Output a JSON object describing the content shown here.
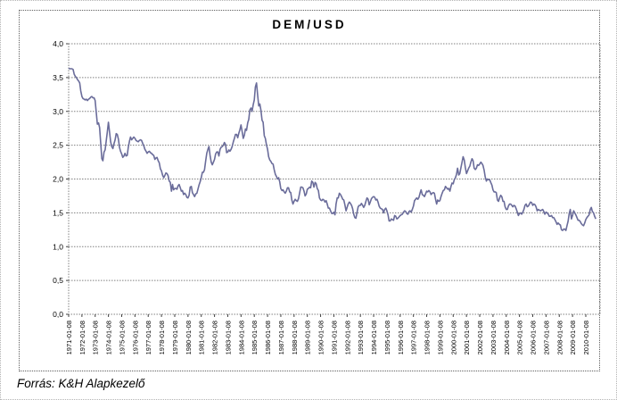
{
  "source_note": "Forrás: K&H Alapkezelő",
  "chart_data": {
    "type": "line",
    "title": "DEM/USD",
    "legend": "none",
    "grid": "horizontal dotted gridlines at every 0.5",
    "line_color": "#6a6c9a",
    "grid_color": "#808080",
    "axis_color": "#404040",
    "background_color": "#ffffff",
    "ylim": [
      0,
      4
    ],
    "y_step": 0.5,
    "y_tick_labels": [
      "0,0",
      "0,5",
      "1,0",
      "1,5",
      "2,0",
      "2,5",
      "3,0",
      "3,5",
      "4,0"
    ],
    "x_tick_labels": [
      "1971-01-08",
      "1972-01-08",
      "1973-01-08",
      "1974-01-08",
      "1975-01-08",
      "1976-01-08",
      "1977-01-08",
      "1978-01-08",
      "1979-01-08",
      "1980-01-08",
      "1981-01-08",
      "1982-01-08",
      "1983-01-08",
      "1984-01-08",
      "1985-01-08",
      "1986-01-08",
      "1987-01-08",
      "1988-01-08",
      "1989-01-08",
      "1990-01-08",
      "1991-01-08",
      "1992-01-08",
      "1993-01-08",
      "1994-01-08",
      "1995-01-08",
      "1996-01-08",
      "1997-01-08",
      "1998-01-08",
      "1999-01-08",
      "2000-01-08",
      "2001-01-08",
      "2002-01-08",
      "2003-01-08",
      "2004-01-08",
      "2005-01-08",
      "2006-01-08",
      "2007-01-08",
      "2008-01-08",
      "2009-01-08",
      "2010-01-08"
    ],
    "series": [
      {
        "name": "DEM/USD",
        "start": "1971-01",
        "frequency": "monthly",
        "values": [
          3.64,
          3.63,
          3.63,
          3.63,
          3.62,
          3.55,
          3.52,
          3.5,
          3.47,
          3.45,
          3.42,
          3.3,
          3.22,
          3.19,
          3.18,
          3.17,
          3.18,
          3.16,
          3.18,
          3.19,
          3.21,
          3.22,
          3.2,
          3.2,
          3.16,
          2.98,
          2.81,
          2.83,
          2.76,
          2.54,
          2.3,
          2.27,
          2.4,
          2.43,
          2.56,
          2.7,
          2.84,
          2.69,
          2.55,
          2.48,
          2.45,
          2.52,
          2.58,
          2.67,
          2.66,
          2.59,
          2.47,
          2.41,
          2.37,
          2.32,
          2.34,
          2.38,
          2.34,
          2.35,
          2.47,
          2.56,
          2.62,
          2.58,
          2.6,
          2.62,
          2.6,
          2.57,
          2.56,
          2.55,
          2.57,
          2.58,
          2.57,
          2.53,
          2.49,
          2.44,
          2.41,
          2.38,
          2.4,
          2.41,
          2.39,
          2.38,
          2.36,
          2.35,
          2.29,
          2.31,
          2.32,
          2.27,
          2.24,
          2.15,
          2.12,
          2.06,
          2.02,
          2.05,
          2.09,
          2.08,
          2.05,
          1.97,
          1.95,
          1.82,
          1.92,
          1.84,
          1.86,
          1.86,
          1.85,
          1.9,
          1.92,
          1.87,
          1.82,
          1.83,
          1.77,
          1.79,
          1.77,
          1.73,
          1.72,
          1.76,
          1.88,
          1.89,
          1.8,
          1.77,
          1.74,
          1.78,
          1.79,
          1.85,
          1.91,
          1.96,
          2.02,
          2.1,
          2.1,
          2.14,
          2.27,
          2.38,
          2.44,
          2.48,
          2.35,
          2.25,
          2.21,
          2.25,
          2.29,
          2.37,
          2.4,
          2.4,
          2.34,
          2.44,
          2.47,
          2.48,
          2.5,
          2.54,
          2.51,
          2.39,
          2.4,
          2.43,
          2.41,
          2.44,
          2.48,
          2.55,
          2.6,
          2.66,
          2.66,
          2.61,
          2.68,
          2.73,
          2.8,
          2.7,
          2.6,
          2.65,
          2.74,
          2.72,
          2.83,
          2.88,
          3.02,
          3.05,
          3.0,
          3.1,
          3.17,
          3.36,
          3.42,
          3.25,
          3.08,
          3.11,
          3.02,
          2.87,
          2.84,
          2.64,
          2.6,
          2.51,
          2.44,
          2.33,
          2.28,
          2.26,
          2.23,
          2.22,
          2.14,
          2.07,
          2.04,
          2.0,
          2.02,
          1.96,
          1.86,
          1.83,
          1.84,
          1.81,
          1.79,
          1.82,
          1.87,
          1.87,
          1.81,
          1.8,
          1.69,
          1.63,
          1.67,
          1.7,
          1.68,
          1.67,
          1.71,
          1.79,
          1.88,
          1.88,
          1.87,
          1.82,
          1.75,
          1.78,
          1.85,
          1.86,
          1.88,
          1.87,
          1.97,
          1.95,
          1.88,
          1.95,
          1.93,
          1.86,
          1.83,
          1.72,
          1.69,
          1.68,
          1.7,
          1.69,
          1.66,
          1.68,
          1.63,
          1.57,
          1.57,
          1.53,
          1.49,
          1.49,
          1.51,
          1.47,
          1.63,
          1.72,
          1.72,
          1.79,
          1.77,
          1.74,
          1.7,
          1.69,
          1.62,
          1.53,
          1.58,
          1.63,
          1.66,
          1.64,
          1.61,
          1.56,
          1.48,
          1.43,
          1.42,
          1.51,
          1.59,
          1.61,
          1.61,
          1.64,
          1.61,
          1.58,
          1.61,
          1.67,
          1.72,
          1.7,
          1.62,
          1.66,
          1.71,
          1.73,
          1.74,
          1.73,
          1.69,
          1.7,
          1.66,
          1.6,
          1.57,
          1.56,
          1.55,
          1.5,
          1.55,
          1.57,
          1.53,
          1.47,
          1.38,
          1.38,
          1.41,
          1.4,
          1.39,
          1.46,
          1.45,
          1.41,
          1.42,
          1.44,
          1.46,
          1.47,
          1.48,
          1.51,
          1.53,
          1.52,
          1.49,
          1.48,
          1.52,
          1.53,
          1.51,
          1.55,
          1.6,
          1.68,
          1.7,
          1.72,
          1.7,
          1.73,
          1.79,
          1.84,
          1.77,
          1.76,
          1.74,
          1.78,
          1.82,
          1.81,
          1.83,
          1.81,
          1.77,
          1.79,
          1.8,
          1.79,
          1.7,
          1.63,
          1.69,
          1.67,
          1.68,
          1.74,
          1.79,
          1.83,
          1.84,
          1.89,
          1.87,
          1.85,
          1.86,
          1.82,
          1.89,
          1.94,
          1.93,
          1.99,
          2.02,
          2.07,
          2.16,
          2.06,
          2.08,
          2.17,
          2.25,
          2.33,
          2.28,
          2.17,
          2.08,
          2.12,
          2.16,
          2.19,
          2.25,
          2.3,
          2.27,
          2.16,
          2.14,
          2.16,
          2.21,
          2.2,
          2.22,
          2.25,
          2.23,
          2.2,
          2.13,
          2.03,
          1.97,
          2.0,
          1.99,
          1.99,
          1.95,
          1.91,
          1.84,
          1.81,
          1.81,
          1.8,
          1.69,
          1.67,
          1.72,
          1.76,
          1.74,
          1.67,
          1.67,
          1.59,
          1.55,
          1.55,
          1.6,
          1.63,
          1.63,
          1.61,
          1.59,
          1.61,
          1.6,
          1.56,
          1.51,
          1.46,
          1.49,
          1.5,
          1.48,
          1.51,
          1.55,
          1.61,
          1.63,
          1.59,
          1.6,
          1.63,
          1.66,
          1.65,
          1.61,
          1.63,
          1.62,
          1.59,
          1.53,
          1.55,
          1.54,
          1.53,
          1.54,
          1.55,
          1.52,
          1.48,
          1.51,
          1.5,
          1.48,
          1.45,
          1.45,
          1.46,
          1.43,
          1.43,
          1.4,
          1.37,
          1.33,
          1.35,
          1.33,
          1.32,
          1.25,
          1.24,
          1.26,
          1.26,
          1.24,
          1.31,
          1.38,
          1.49,
          1.55,
          1.41,
          1.46,
          1.53,
          1.5,
          1.47,
          1.43,
          1.39,
          1.39,
          1.37,
          1.34,
          1.32,
          1.31,
          1.35,
          1.4,
          1.43,
          1.45,
          1.47,
          1.55,
          1.58,
          1.52,
          1.5,
          1.45,
          1.41
        ]
      }
    ]
  }
}
